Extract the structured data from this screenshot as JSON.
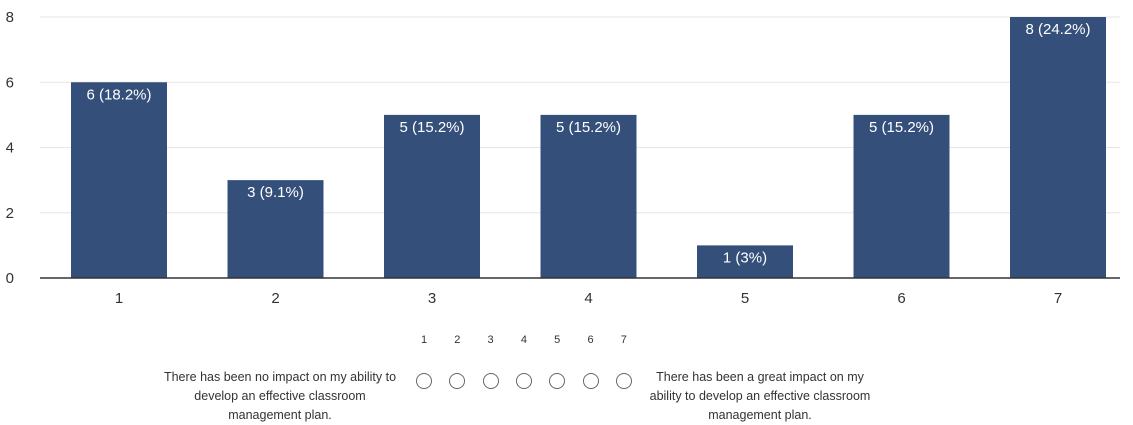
{
  "chart_data": {
    "type": "bar",
    "categories": [
      "1",
      "2",
      "3",
      "4",
      "5",
      "6",
      "7"
    ],
    "values": [
      6,
      3,
      5,
      5,
      1,
      5,
      8
    ],
    "data_labels": [
      "6 (18.2%)",
      "3 (9.1%)",
      "5 (15.2%)",
      "5 (15.2%)",
      "1 (3%)",
      "5 (15.2%)",
      "8 (24.2%)"
    ],
    "y_ticks": [
      0,
      2,
      4,
      6,
      8
    ],
    "ylim": [
      0,
      8
    ],
    "grid": true,
    "bar_color": "#34507a"
  },
  "scale": {
    "numbers": [
      "1",
      "2",
      "3",
      "4",
      "5",
      "6",
      "7"
    ],
    "low_anchor": "There has been no impact on my ability to develop an effective classroom management plan.",
    "high_anchor": "There has been a great impact on my ability to develop an effective classroom management plan."
  }
}
